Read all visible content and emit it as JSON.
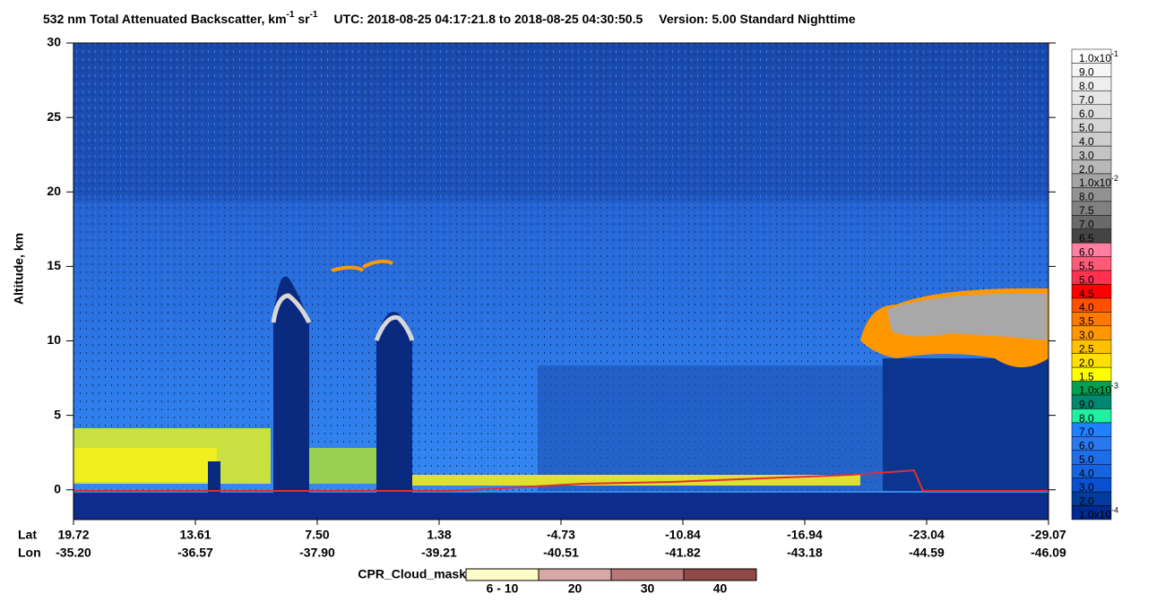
{
  "chart_data": {
    "type": "curtain",
    "title": {
      "product": "532 nm Total Attenuated Backscatter, km",
      "unit1_sup": "-1",
      "unit2": " sr",
      "unit2_sup": "-1",
      "utc": "UTC:  2018-08-25 04:17:21.8  to  2018-08-25 04:30:50.5",
      "version": "Version: 5.00  Standard  Nighttime"
    },
    "y_label": "Altitude, km",
    "ylim": [
      -2,
      30
    ],
    "yticks": [
      0,
      5,
      10,
      15,
      20,
      25,
      30
    ],
    "x_row_labels": [
      "Lat",
      "Lon"
    ],
    "lat": [
      "19.72",
      "13.61",
      "7.50",
      "1.38",
      "-4.73",
      "-10.84",
      "-16.94",
      "-23.04",
      "-29.07"
    ],
    "lon": [
      "-35.20",
      "-36.57",
      "-37.90",
      "-39.21",
      "-40.51",
      "-41.82",
      "-43.18",
      "-44.59",
      "-46.09"
    ],
    "colorbar": {
      "labels": [
        {
          "text": "1.0x10",
          "sup": "-1"
        },
        "9.0",
        "8.0",
        "7.0",
        "6.0",
        "5.0",
        "4.0",
        "3.0",
        "2.0",
        {
          "text": "1.0x10",
          "sup": "-2"
        },
        "8.0",
        "7.5",
        "7.0",
        "6.5",
        "6.0",
        "5.5",
        "5.0",
        "4.5",
        "4.0",
        "3.5",
        "3.0",
        "2.5",
        "2.0",
        "1.5",
        {
          "text": "1.0x10",
          "sup": "-3"
        },
        "9.0",
        "8.0",
        "7.0",
        "6.0",
        "5.0",
        "4.0",
        "3.0",
        "2.0",
        {
          "text": "1.0x10",
          "sup": "-4"
        }
      ],
      "colors": [
        "#ffffff",
        "#f6f6f6",
        "#eeeeee",
        "#e6e6e6",
        "#dedede",
        "#d6d6d6",
        "#cecece",
        "#c4c4c4",
        "#b8b8b8",
        "#a4a4a4",
        "#929292",
        "#808080",
        "#6a6a6a",
        "#444444",
        "#ff7fa0",
        "#ff5a78",
        "#ff3050",
        "#ff0000",
        "#ff5000",
        "#ff7800",
        "#ff9800",
        "#ffc000",
        "#ffe000",
        "#ffff00",
        "#00a050",
        "#008870",
        "#20f0a0",
        "#2080ff",
        "#2a78f0",
        "#1e6ee8",
        "#1664e0",
        "#0a50d0",
        "#003c9c",
        "#002a90"
      ]
    },
    "cpr_legend": {
      "title": "CPR_Cloud_mask",
      "labels": [
        "6 - 10",
        "20",
        "30",
        "40"
      ],
      "colors": [
        "#fffcc8",
        "#d8a8a8",
        "#b87878",
        "#904848"
      ]
    }
  }
}
